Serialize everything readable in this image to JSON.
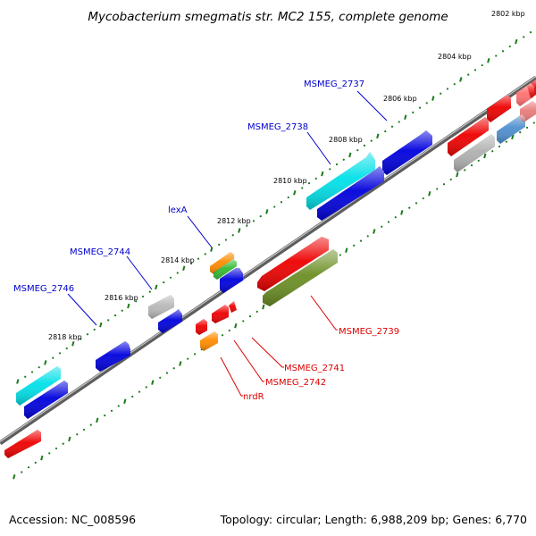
{
  "title": "Mycobacterium smegmatis str. MC2 155, complete genome",
  "footer": {
    "accession": "Accession: NC_008596",
    "topology": "Topology: circular; Length: 6,988,209 bp; Genes: 6,770"
  },
  "scale_labels": [
    "2802 kbp",
    "2804 kbp",
    "2806 kbp",
    "2808 kbp",
    "2810 kbp",
    "2812 kbp",
    "2814 kbp",
    "2816 kbp",
    "2818 kbp"
  ],
  "genes": [
    {
      "label": "MSMEG_2737",
      "strand": "forward",
      "color": "#0000dd"
    },
    {
      "label": "MSMEG_2738",
      "strand": "forward",
      "color": "#00e0e8"
    },
    {
      "label": "lexA",
      "strand": "forward",
      "color": "#ff8c00"
    },
    {
      "label": "MSMEG_2744",
      "strand": "forward",
      "color": "#b4b4b4"
    },
    {
      "label": "MSMEG_2746",
      "strand": "forward",
      "color": "#0000dd"
    },
    {
      "label": "MSMEG_2739",
      "strand": "reverse",
      "color": "#6b8e23"
    },
    {
      "label": "MSMEG_2741",
      "strand": "reverse",
      "color": "#ff0000"
    },
    {
      "label": "MSMEG_2742",
      "strand": "reverse",
      "color": "#ff0000"
    },
    {
      "label": "nrdR",
      "strand": "reverse",
      "color": "#ff8c00"
    }
  ],
  "colors": {
    "forward_label": "#0000cc",
    "reverse_label": "#dd0000",
    "backbone": "#7a7a7a",
    "ticks": "#1a7a1a"
  }
}
